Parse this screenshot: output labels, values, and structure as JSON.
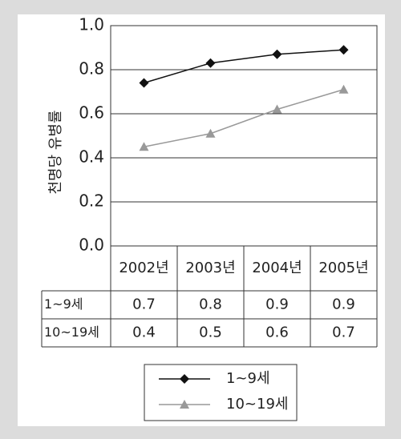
{
  "chart_data": {
    "type": "line",
    "y_label": "천명당 유병률",
    "categories": [
      "2002년",
      "2003년",
      "2004년",
      "2005년"
    ],
    "series": [
      {
        "name": "1~9세",
        "color": "#111111",
        "marker": "diamond",
        "values": [
          0.74,
          0.83,
          0.87,
          0.89
        ],
        "value_labels": [
          "0.7",
          "0.8",
          "0.9",
          "0.9"
        ]
      },
      {
        "name": "10~19세",
        "color": "#999999",
        "marker": "triangle",
        "values": [
          0.45,
          0.51,
          0.62,
          0.71
        ],
        "value_labels": [
          "0.4",
          "0.5",
          "0.6",
          "0.7"
        ]
      }
    ],
    "ylim": [
      0,
      1
    ],
    "yticks": [
      {
        "value": 0,
        "label": "0.0"
      },
      0.2,
      0.4,
      0.6,
      0.8,
      {
        "value": 1,
        "label": "1.0"
      }
    ],
    "grid": true,
    "legend": "bottom"
  }
}
